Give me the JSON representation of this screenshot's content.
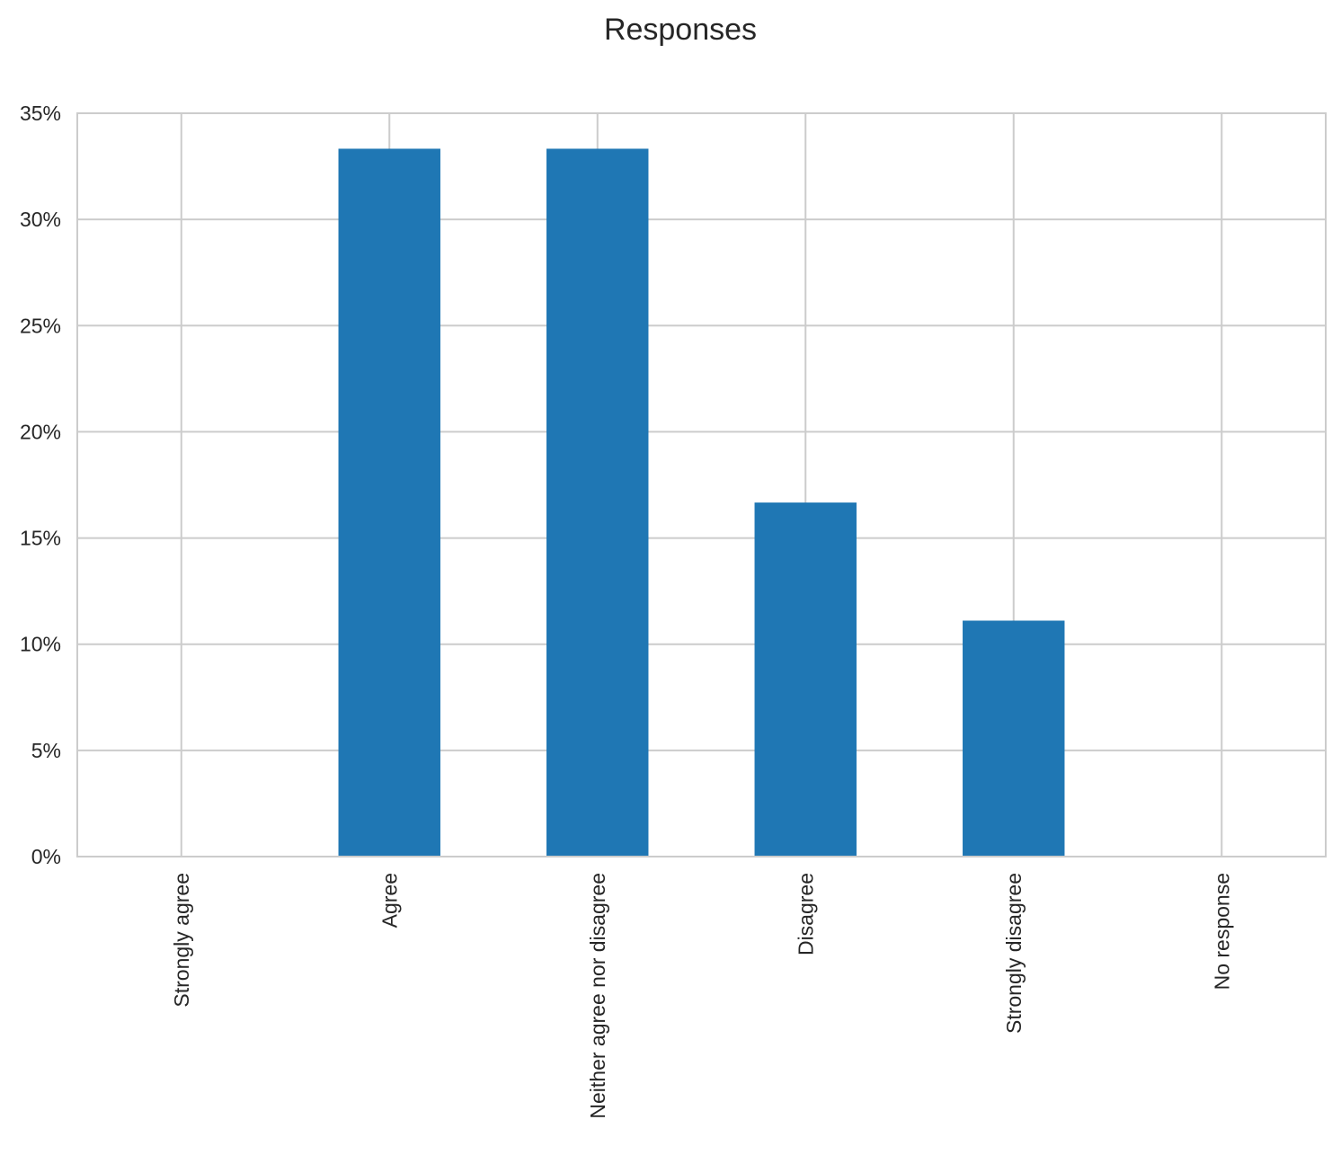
{
  "chart_data": {
    "type": "bar",
    "title": "Responses",
    "xlabel": "",
    "ylabel": "",
    "categories": [
      "Strongly agree",
      "Agree",
      "Neither agree nor disagree",
      "Disagree",
      "Strongly disagree",
      "No response"
    ],
    "values": [
      0,
      33.33,
      33.33,
      16.67,
      11.11,
      0
    ],
    "ylim": [
      0,
      35
    ],
    "yticks": [
      0,
      5,
      10,
      15,
      20,
      25,
      30,
      35
    ],
    "ytick_labels": [
      "0%",
      "5%",
      "10%",
      "15%",
      "20%",
      "25%",
      "30%",
      "35%"
    ],
    "grid": true,
    "legend": "none",
    "colors": {
      "bar": "#1f77b4",
      "grid": "#cccccc",
      "axis": "#cccccc",
      "text": "#262626"
    }
  }
}
